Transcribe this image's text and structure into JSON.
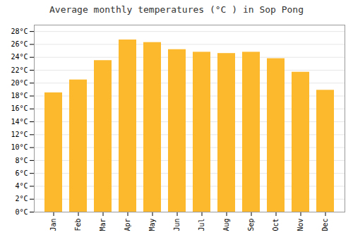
{
  "chart_data": {
    "type": "bar",
    "title": "Average monthly temperatures (°C ) in Sop Pong",
    "categories": [
      "Jan",
      "Feb",
      "Mar",
      "Apr",
      "May",
      "Jun",
      "Jul",
      "Aug",
      "Sep",
      "Oct",
      "Nov",
      "Dec"
    ],
    "values": [
      18.5,
      20.5,
      23.5,
      26.7,
      26.3,
      25.2,
      24.8,
      24.6,
      24.8,
      23.8,
      21.7,
      18.9
    ],
    "color": "#FDB92E",
    "ylim": [
      0,
      29
    ],
    "yticks": [
      {
        "value": 0,
        "label": "0°C"
      },
      {
        "value": 2,
        "label": "2°C"
      },
      {
        "value": 4,
        "label": "4°C"
      },
      {
        "value": 6,
        "label": "6°C"
      },
      {
        "value": 8,
        "label": "8°C"
      },
      {
        "value": 10,
        "label": "10°C"
      },
      {
        "value": 12,
        "label": "12°C"
      },
      {
        "value": 14,
        "label": "14°C"
      },
      {
        "value": 16,
        "label": "16°C"
      },
      {
        "value": 18,
        "label": "18°C"
      },
      {
        "value": 20,
        "label": "20°C"
      },
      {
        "value": 22,
        "label": "22°C"
      },
      {
        "value": 24,
        "label": "24°C"
      },
      {
        "value": 26,
        "label": "26°C"
      },
      {
        "value": 28,
        "label": "28°C"
      }
    ],
    "grid": true
  }
}
